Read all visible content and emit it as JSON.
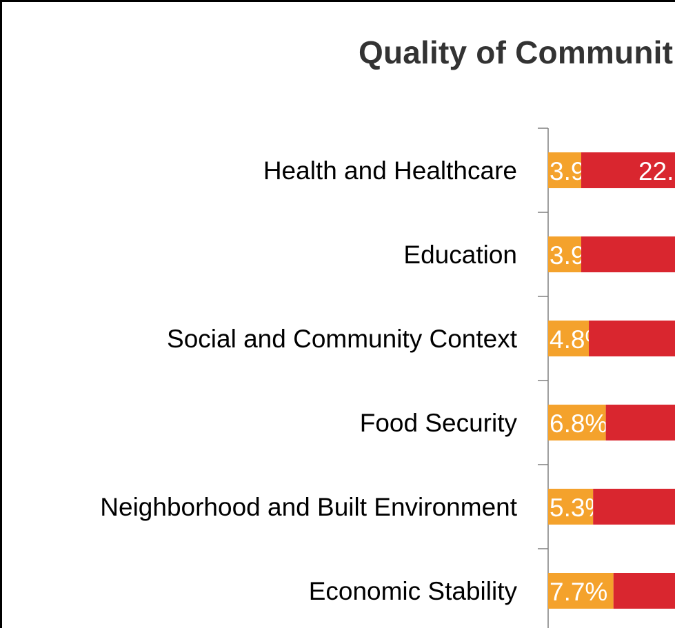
{
  "chart_data": {
    "type": "bar",
    "orientation": "horizontal",
    "stacked": true,
    "title": "Quality of Communit",
    "categories": [
      "Health and Healthcare ",
      "Education",
      "Social and Community Context",
      "Food Security",
      "Neighborhood and Built Environment",
      "Economic Stability"
    ],
    "series": [
      {
        "color": "#F4A22C",
        "values": [
          3.9,
          3.9,
          4.8,
          6.8,
          5.3,
          7.7
        ],
        "labels": [
          "3.9%",
          "3.9%",
          "4.8%",
          "6.8%",
          "5.3%",
          "7.7%"
        ]
      },
      {
        "color": "#D9262F",
        "values": [
          22,
          null,
          null,
          null,
          null,
          null
        ],
        "labels": [
          "22.",
          "",
          "",
          "",
          "",
          ""
        ]
      }
    ],
    "x_unit": "%",
    "grid": false,
    "legend": "none"
  }
}
